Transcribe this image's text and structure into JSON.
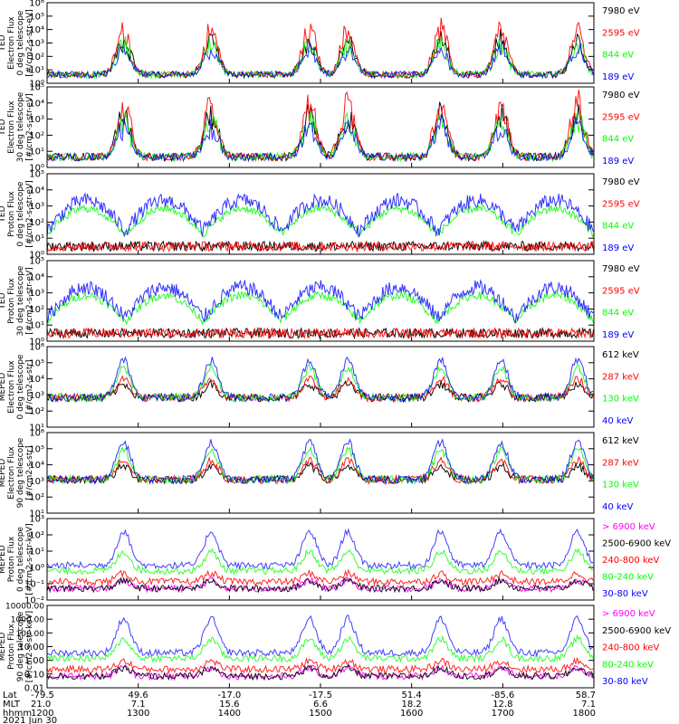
{
  "colors": {
    "blue": "#0000ff",
    "red": "#ff0000",
    "green": "#00ff00",
    "black": "#000000",
    "magenta": "#ff00ff"
  },
  "chart_data": [
    {
      "type": "line",
      "ylabel": [
        "TED",
        "Electron Flux",
        "0 deg telescope",
        "[#/cm2-s-str-eV]"
      ],
      "yscale": "log",
      "ylim": [
        1,
        1000000
      ],
      "y_ticks": [
        "10⁰",
        "10¹",
        "10²",
        "10³",
        "10⁴",
        "10⁵",
        "10⁶"
      ],
      "series": [
        {
          "name": "7980 eV",
          "color": "black"
        },
        {
          "name": "2595 eV",
          "color": "red"
        },
        {
          "name": "844 eV",
          "color": "green"
        },
        {
          "name": "189 eV",
          "color": "blue"
        }
      ]
    },
    {
      "type": "line",
      "ylabel": [
        "TED",
        "Electron Flux",
        "30 deg telescope",
        "[#/cm2-s-str-eV]"
      ],
      "yscale": "log",
      "ylim": [
        1,
        100000
      ],
      "y_ticks": [
        "10⁰",
        "10¹",
        "10²",
        "10³",
        "10⁴",
        "10⁵"
      ],
      "series": [
        {
          "name": "7980 eV",
          "color": "black"
        },
        {
          "name": "2595 eV",
          "color": "red"
        },
        {
          "name": "844 eV",
          "color": "green"
        },
        {
          "name": "189 eV",
          "color": "blue"
        }
      ]
    },
    {
      "type": "line",
      "ylabel": [
        "TED",
        "Proton Flux",
        "0 deg telescope",
        "[#/cm2-s-str-eV]"
      ],
      "yscale": "log",
      "ylim": [
        1,
        100000
      ],
      "y_ticks": [
        "10⁰",
        "10¹",
        "10²",
        "10³",
        "10⁴",
        "10⁵"
      ],
      "series": [
        {
          "name": "7980 eV",
          "color": "black"
        },
        {
          "name": "2595 eV",
          "color": "red"
        },
        {
          "name": "844 eV",
          "color": "green"
        },
        {
          "name": "189 eV",
          "color": "blue"
        }
      ]
    },
    {
      "type": "line",
      "ylabel": [
        "TED",
        "Proton Flux",
        "30 deg telescope",
        "[#/cm2-s-str-eV]"
      ],
      "yscale": "log",
      "ylim": [
        1,
        100000
      ],
      "y_ticks": [
        "10⁰",
        "10¹",
        "10²",
        "10³",
        "10⁴",
        "10⁵"
      ],
      "series": [
        {
          "name": "7980 eV",
          "color": "black"
        },
        {
          "name": "2595 eV",
          "color": "red"
        },
        {
          "name": "844 eV",
          "color": "green"
        },
        {
          "name": "189 eV",
          "color": "blue"
        }
      ]
    },
    {
      "type": "line",
      "ylabel": [
        "MEPED",
        "Electron Flux",
        "0 deg telescope",
        "[#/cm2-s-str]"
      ],
      "yscale": "log",
      "ylim": [
        1,
        1000000
      ],
      "y_ticks": [
        "10¹",
        "10²",
        "10³",
        "10⁴",
        "10⁵",
        "10⁶"
      ],
      "series": [
        {
          "name": "612 keV",
          "color": "black"
        },
        {
          "name": "287 keV",
          "color": "red"
        },
        {
          "name": "130 keV",
          "color": "green"
        },
        {
          "name": "40 keV",
          "color": "blue"
        }
      ]
    },
    {
      "type": "line",
      "ylabel": [
        "MEPED",
        "Electron Flux",
        "90 deg telescope",
        "[#/cm2-s-str]"
      ],
      "yscale": "log",
      "ylim": [
        1,
        1000000
      ],
      "y_ticks": [
        "10¹",
        "10²",
        "10³",
        "10⁴",
        "10⁵",
        "10⁶"
      ],
      "series": [
        {
          "name": "612 keV",
          "color": "black"
        },
        {
          "name": "287 keV",
          "color": "red"
        },
        {
          "name": "130 keV",
          "color": "green"
        },
        {
          "name": "40 keV",
          "color": "blue"
        }
      ]
    },
    {
      "type": "line",
      "ylabel": [
        "MEPED",
        "Proton Flux",
        "0 deg telescope",
        "[#/cm2-s-str-keV]"
      ],
      "yscale": "log",
      "ylim": [
        0.01,
        10000
      ],
      "y_ticks": [
        "10⁻²",
        "10⁻¹",
        "10⁰",
        "10¹",
        "10²",
        "10³"
      ],
      "series": [
        {
          "name": "> 6900 keV",
          "color": "magenta"
        },
        {
          "name": "2500-6900 keV",
          "color": "black"
        },
        {
          "name": "240-800 keV",
          "color": "red"
        },
        {
          "name": "80-240 keV",
          "color": "green"
        },
        {
          "name": "30-80 keV",
          "color": "blue"
        }
      ]
    },
    {
      "type": "line",
      "ylabel": [
        "MEPED",
        "Proton Flux",
        "90 deg telescope",
        "[#/cm2-s-str-keV]"
      ],
      "yscale": "log",
      "ylim": [
        0.01,
        10000
      ],
      "y_ticks": [
        "0.01",
        "0.10",
        "1.00",
        "10.00",
        "100.00",
        "1000.00",
        "10000.00"
      ],
      "series": [
        {
          "name": "> 6900 keV",
          "color": "magenta"
        },
        {
          "name": "2500-6900 keV",
          "color": "black"
        },
        {
          "name": "240-800 keV",
          "color": "red"
        },
        {
          "name": "80-240 keV",
          "color": "green"
        },
        {
          "name": "30-80 keV",
          "color": "blue"
        }
      ]
    }
  ],
  "x_axis": {
    "row_labels": [
      "Lat",
      "MLT",
      "hhmm"
    ],
    "date": "2021 Jun 30",
    "ticks": [
      {
        "lat": "-79.5",
        "mlt": "21.0",
        "hhmm": "1200"
      },
      {
        "lat": "49.6",
        "mlt": "7.1",
        "hhmm": "1300"
      },
      {
        "lat": "-17.0",
        "mlt": "15.6",
        "hhmm": "1400"
      },
      {
        "lat": "-17.5",
        "mlt": "6.6",
        "hhmm": "1500"
      },
      {
        "lat": "51.4",
        "mlt": "18.2",
        "hhmm": "1600"
      },
      {
        "lat": "-85.6",
        "mlt": "12.8",
        "hhmm": "1700"
      },
      {
        "lat": "58.7",
        "mlt": "7.1",
        "hhmm": "1800"
      }
    ]
  }
}
